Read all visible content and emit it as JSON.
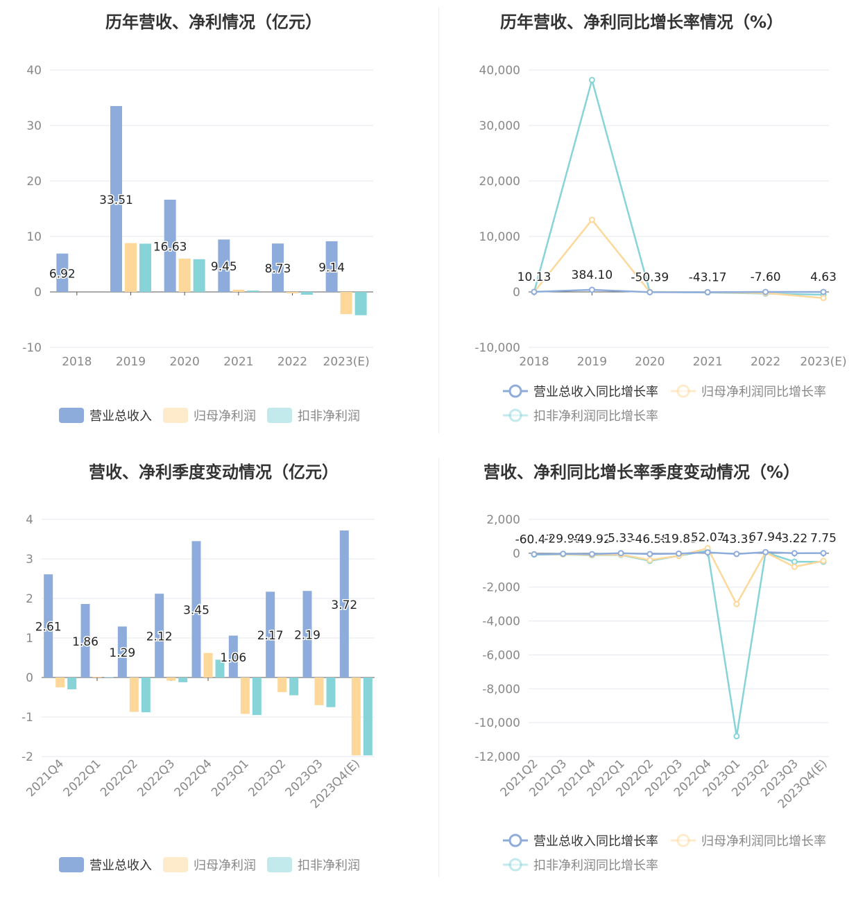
{
  "chart_data": [
    {
      "type": "bar",
      "title": "历年营收、净利情况（亿元）",
      "categories": [
        "2018",
        "2019",
        "2020",
        "2021",
        "2022",
        "2023(E)"
      ],
      "ylim": [
        -10,
        40
      ],
      "yticks": [
        "40",
        "30",
        "20",
        "10",
        "0",
        "-10"
      ],
      "series": [
        {
          "name": "营业总收入",
          "color": "#8eacdb",
          "values": [
            6.92,
            33.51,
            16.63,
            9.45,
            8.73,
            9.14
          ],
          "labels": [
            "6.92",
            "33.51",
            "16.63",
            "9.45",
            "8.73",
            "9.14"
          ]
        },
        {
          "name": "归母净利润",
          "color": "#fdd89a",
          "values": [
            0,
            8.8,
            6.0,
            0.4,
            -0.25,
            -4.0
          ]
        },
        {
          "name": "扣非净利润",
          "color": "#86d4d8",
          "values": [
            0,
            8.7,
            5.9,
            0.25,
            -0.5,
            -4.2
          ]
        }
      ],
      "legend": "bottom",
      "grid": true
    },
    {
      "type": "line",
      "title": "历年营收、净利同比增长率情况（%）",
      "categories": [
        "2018",
        "2019",
        "2020",
        "2021",
        "2022",
        "2023(E)"
      ],
      "ylim": [
        -10000,
        40000
      ],
      "yticks": [
        "40,000",
        "30,000",
        "20,000",
        "10,000",
        "0",
        "-10,000"
      ],
      "series": [
        {
          "name": "营业总收入同比增长率",
          "color": "#8eacdb",
          "values": [
            10.13,
            384.1,
            -50.39,
            -43.17,
            -7.6,
            4.63
          ],
          "labels": [
            "10.13",
            "384.10",
            "-50.39",
            "-43.17",
            "-7.60",
            "4.63"
          ]
        },
        {
          "name": "归母净利润同比增长率",
          "color": "#fdd89a",
          "values": [
            0,
            13000,
            0,
            -50,
            -200,
            -1100
          ]
        },
        {
          "name": "扣非净利润同比增长率",
          "color": "#86d4d8",
          "values": [
            0,
            38200,
            0,
            -100,
            -300,
            -500
          ]
        }
      ],
      "legend": "bottom",
      "grid": true
    },
    {
      "type": "bar",
      "title": "营收、净利季度变动情况（亿元）",
      "categories": [
        "2021Q4",
        "2022Q1",
        "2022Q2",
        "2022Q3",
        "2022Q4",
        "2023Q1",
        "2023Q2",
        "2023Q3",
        "2023Q4(E)"
      ],
      "ylim": [
        -2,
        4
      ],
      "yticks": [
        "4",
        "3",
        "2",
        "1",
        "0",
        "-1",
        "-2"
      ],
      "series": [
        {
          "name": "营业总收入",
          "color": "#8eacdb",
          "values": [
            2.61,
            1.86,
            1.29,
            2.12,
            3.45,
            1.06,
            2.17,
            2.19,
            3.72
          ],
          "labels": [
            "2.61",
            "1.86",
            "1.29",
            "2.12",
            "3.45",
            "1.06",
            "2.17",
            "2.19",
            "3.72"
          ]
        },
        {
          "name": "归母净利润",
          "color": "#fdd89a",
          "values": [
            -0.25,
            0.02,
            -0.87,
            -0.08,
            0.62,
            -0.92,
            -0.37,
            -0.7,
            -1.97
          ]
        },
        {
          "name": "扣非净利润",
          "color": "#86d4d8",
          "values": [
            -0.3,
            0.01,
            -0.88,
            -0.12,
            0.45,
            -0.95,
            -0.45,
            -0.75,
            -1.97
          ]
        }
      ],
      "legend": "bottom",
      "grid": true
    },
    {
      "type": "line",
      "title": "营收、净利同比增长率季度变动情况（%）",
      "categories": [
        "2021Q2",
        "2021Q3",
        "2021Q4",
        "2022Q1",
        "2022Q2",
        "2022Q3",
        "2022Q4",
        "2023Q1",
        "2023Q2",
        "2023Q3",
        "2023Q4(E)"
      ],
      "ylim": [
        -12000,
        2000
      ],
      "yticks": [
        "2,000",
        "0",
        "-2,000",
        "-4,000",
        "-6,000",
        "-8,000",
        "-10,000",
        "-12,000"
      ],
      "series": [
        {
          "name": "营业总收入同比增长率",
          "color": "#8eacdb",
          "values": [
            -60.47,
            -29.99,
            -49.92,
            5.33,
            -46.58,
            -19.85,
            52.07,
            -43.39,
            67.94,
            3.22,
            7.75
          ],
          "labels": [
            "-60.47",
            "-29.99",
            "-49.92",
            "5.33",
            "-46.58",
            "-19.85",
            "52.07",
            "-43.39",
            "67.94",
            "3.22",
            "7.75"
          ]
        },
        {
          "name": "归母净利润同比增长率",
          "color": "#fdd89a",
          "values": [
            -50,
            -60,
            -100,
            -80,
            -400,
            -150,
            300,
            -3000,
            50,
            -800,
            -450
          ]
        },
        {
          "name": "扣非净利润同比增长率",
          "color": "#86d4d8",
          "values": [
            -80,
            -70,
            -120,
            -100,
            -450,
            -150,
            150,
            -10800,
            50,
            -500,
            -500
          ]
        }
      ],
      "legend": "bottom",
      "grid": true
    }
  ]
}
